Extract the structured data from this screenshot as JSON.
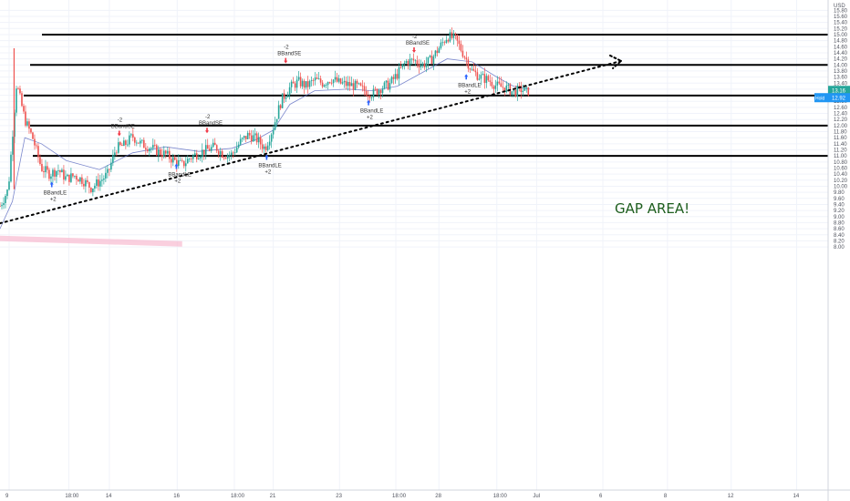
{
  "chart_data": {
    "type": "candlestick",
    "currency": "USD",
    "y_axis": {
      "min": 8.0,
      "max": 15.9,
      "step": 0.2,
      "position": "right"
    },
    "x_ticks": [
      "9",
      "18:00",
      "14",
      "16",
      "18:00",
      "21",
      "23",
      "18:00",
      "28",
      "18:00",
      "Jul",
      "6",
      "8",
      "12",
      "14"
    ],
    "price_tags": [
      {
        "text": "13.16",
        "value": 13.16,
        "color": "#26a69a"
      },
      {
        "text": "12.92",
        "value": 12.92,
        "color": "#2196f3",
        "prefix": "Hold"
      }
    ],
    "horizontal_lines": [
      15.0,
      14.0,
      12.99,
      12.0,
      11.0
    ],
    "trendline": {
      "from": {
        "t": 0,
        "y": 8.78
      },
      "to": {
        "t": 0.75,
        "y": 14.13
      },
      "style": "dotted"
    },
    "annotation": "GAP AREA!",
    "signals": [
      {
        "label": "BBandLE",
        "qty": "+2",
        "type": "long",
        "t": 0.0625,
        "price": 10.15
      },
      {
        "label": "BBandSE",
        "qty": "-2",
        "type": "short",
        "t": 0.144,
        "price": 11.65
      },
      {
        "label": "BBandLE",
        "qty": "+2",
        "type": "long",
        "t": 0.213,
        "price": 10.75
      },
      {
        "label": "BBandSE",
        "qty": "-2",
        "type": "short",
        "t": 0.25,
        "price": 11.75
      },
      {
        "label": "BBandLE",
        "qty": "+2",
        "type": "long",
        "t": 0.322,
        "price": 11.05
      },
      {
        "label": "BBandSE",
        "qty": "-2",
        "type": "short",
        "t": 0.345,
        "price": 14.05
      },
      {
        "label": "BBandLE",
        "qty": "+2",
        "type": "long",
        "t": 0.445,
        "price": 12.85
      },
      {
        "label": "BBandSE",
        "qty": "-2",
        "type": "short",
        "t": 0.5,
        "price": 14.4
      },
      {
        "label": "BBandLE",
        "qty": "+2",
        "type": "long",
        "t": 0.563,
        "price": 13.7
      }
    ],
    "price_path": [
      [
        0.0,
        9.35
      ],
      [
        0.01,
        9.9
      ],
      [
        0.02,
        13.4
      ],
      [
        0.03,
        12.2
      ],
      [
        0.04,
        11.55
      ],
      [
        0.05,
        10.6
      ],
      [
        0.06,
        10.4
      ],
      [
        0.07,
        10.55
      ],
      [
        0.08,
        10.25
      ],
      [
        0.09,
        10.35
      ],
      [
        0.1,
        10.2
      ],
      [
        0.11,
        9.95
      ],
      [
        0.12,
        10.15
      ],
      [
        0.13,
        10.4
      ],
      [
        0.14,
        11.25
      ],
      [
        0.15,
        11.35
      ],
      [
        0.16,
        11.65
      ],
      [
        0.17,
        11.4
      ],
      [
        0.18,
        11.3
      ],
      [
        0.19,
        11.15
      ],
      [
        0.2,
        11.05
      ],
      [
        0.21,
        10.85
      ],
      [
        0.22,
        10.7
      ],
      [
        0.23,
        10.95
      ],
      [
        0.24,
        11.1
      ],
      [
        0.25,
        11.2
      ],
      [
        0.26,
        11.3
      ],
      [
        0.27,
        11.05
      ],
      [
        0.28,
        11.05
      ],
      [
        0.29,
        11.45
      ],
      [
        0.3,
        11.7
      ],
      [
        0.31,
        11.55
      ],
      [
        0.32,
        11.25
      ],
      [
        0.33,
        11.95
      ],
      [
        0.34,
        12.85
      ],
      [
        0.35,
        13.25
      ],
      [
        0.36,
        13.45
      ],
      [
        0.37,
        13.3
      ],
      [
        0.38,
        13.5
      ],
      [
        0.39,
        13.4
      ],
      [
        0.4,
        13.55
      ],
      [
        0.41,
        13.4
      ],
      [
        0.42,
        13.35
      ],
      [
        0.43,
        13.3
      ],
      [
        0.44,
        13.15
      ],
      [
        0.45,
        13.05
      ],
      [
        0.46,
        13.25
      ],
      [
        0.47,
        13.35
      ],
      [
        0.48,
        13.7
      ],
      [
        0.49,
        14.1
      ],
      [
        0.5,
        14.15
      ],
      [
        0.51,
        14.0
      ],
      [
        0.52,
        14.15
      ],
      [
        0.53,
        14.55
      ],
      [
        0.54,
        14.95
      ],
      [
        0.55,
        14.85
      ],
      [
        0.56,
        14.35
      ],
      [
        0.57,
        13.8
      ],
      [
        0.58,
        13.6
      ],
      [
        0.59,
        13.5
      ],
      [
        0.6,
        13.3
      ],
      [
        0.61,
        13.25
      ],
      [
        0.62,
        13.1
      ],
      [
        0.63,
        13.2
      ],
      [
        0.635,
        13.1
      ],
      [
        0.64,
        13.16
      ]
    ],
    "band_path": [
      [
        0.0,
        8.6
      ],
      [
        0.015,
        9.5
      ],
      [
        0.03,
        11.6
      ],
      [
        0.05,
        11.4
      ],
      [
        0.08,
        10.85
      ],
      [
        0.12,
        10.55
      ],
      [
        0.16,
        11.1
      ],
      [
        0.2,
        11.3
      ],
      [
        0.24,
        11.15
      ],
      [
        0.28,
        11.25
      ],
      [
        0.31,
        11.55
      ],
      [
        0.33,
        11.85
      ],
      [
        0.35,
        12.7
      ],
      [
        0.38,
        13.15
      ],
      [
        0.42,
        13.2
      ],
      [
        0.45,
        13.15
      ],
      [
        0.48,
        13.3
      ],
      [
        0.51,
        13.75
      ],
      [
        0.54,
        14.2
      ],
      [
        0.57,
        14.1
      ],
      [
        0.6,
        13.6
      ],
      [
        0.62,
        13.3
      ],
      [
        0.64,
        13.2
      ]
    ],
    "volume_band": [
      [
        0.0,
        8.28
      ],
      [
        0.22,
        8.1
      ]
    ]
  }
}
